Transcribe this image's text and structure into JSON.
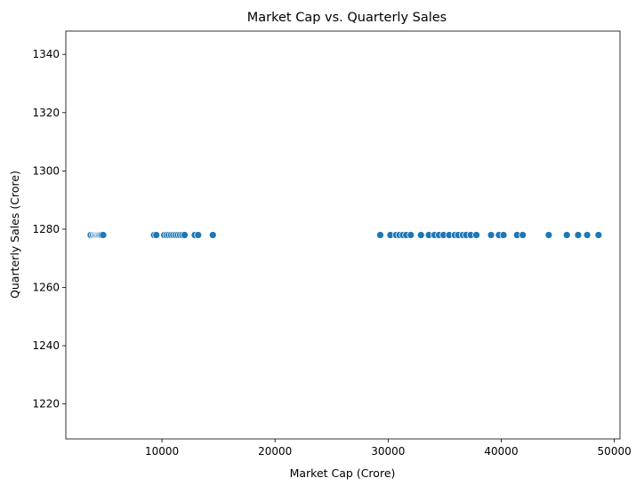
{
  "chart_data": {
    "type": "scatter",
    "title": "Market Cap vs. Quarterly Sales",
    "xlabel": "Market Cap (Crore)",
    "ylabel": "Quarterly Sales (Crore)",
    "xlim": [
      1500,
      50500
    ],
    "ylim": [
      1208,
      1348
    ],
    "xticks": [
      10000,
      20000,
      30000,
      40000,
      50000
    ],
    "yticks": [
      1220,
      1240,
      1260,
      1280,
      1300,
      1320,
      1340
    ],
    "grid": false,
    "point_color": "#1f77b4",
    "series": [
      {
        "x": [
          3700,
          3900,
          4050,
          4150,
          4250,
          4350,
          4450,
          4550,
          4650,
          4800,
          9300,
          9500,
          10200,
          10400,
          10600,
          10800,
          11000,
          11200,
          11400,
          11600,
          11800,
          12000,
          12900,
          13200,
          14500,
          29300,
          30200,
          30700,
          31000,
          31300,
          31600,
          32000,
          32900,
          33600,
          34100,
          34500,
          34900,
          35400,
          35900,
          36200,
          36600,
          36900,
          37300,
          37800,
          39100,
          39800,
          40200,
          41400,
          41900,
          44200,
          45800,
          46800,
          47600,
          48600
        ],
        "y": [
          1278,
          1278,
          1278,
          1278,
          1278,
          1278,
          1278,
          1278,
          1278,
          1278,
          1278,
          1278,
          1278,
          1278,
          1278,
          1278,
          1278,
          1278,
          1278,
          1278,
          1278,
          1278,
          1278,
          1278,
          1278,
          1278,
          1278,
          1278,
          1278,
          1278,
          1278,
          1278,
          1278,
          1278,
          1278,
          1278,
          1278,
          1278,
          1278,
          1278,
          1278,
          1278,
          1278,
          1278,
          1278,
          1278,
          1278,
          1278,
          1278,
          1278,
          1278,
          1278,
          1278,
          1278
        ]
      }
    ]
  }
}
